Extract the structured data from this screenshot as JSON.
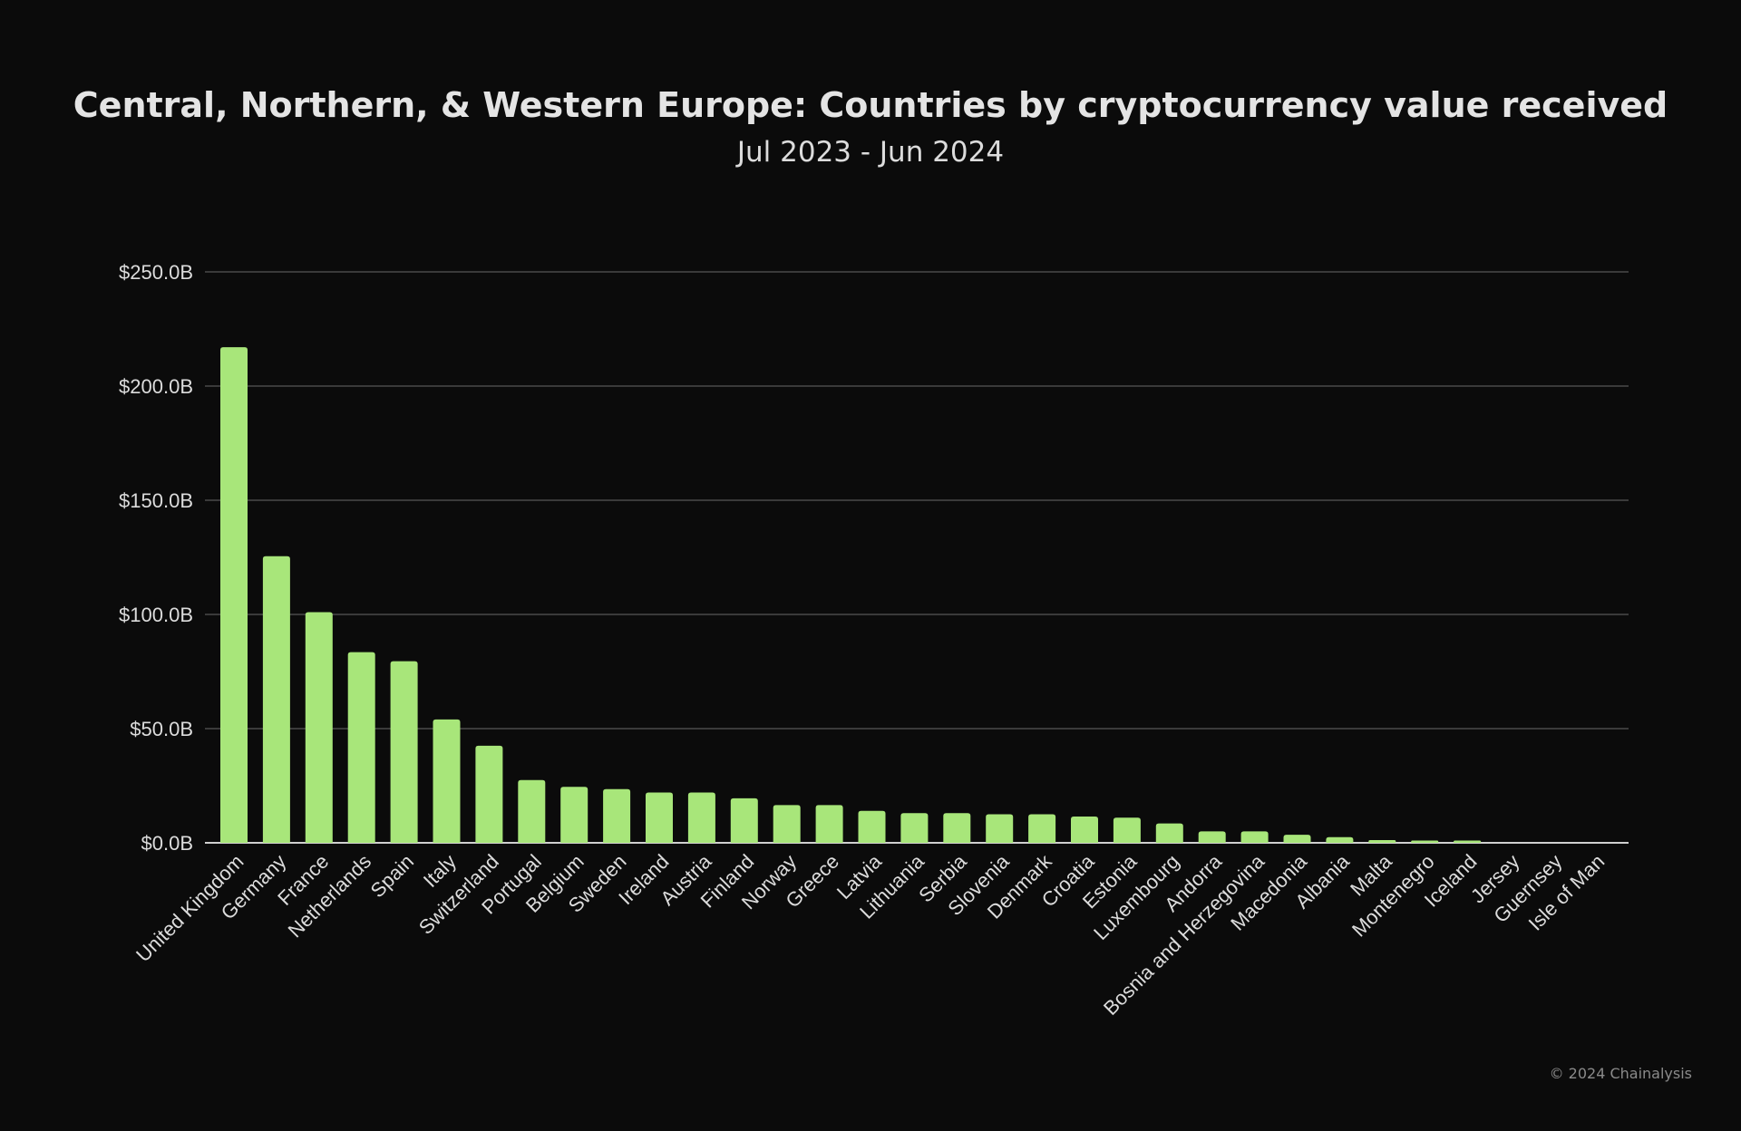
{
  "chart_data": {
    "type": "bar",
    "title": "Central, Northern, & Western Europe: Countries by cryptocurrency value received",
    "subtitle": "Jul 2023 - Jun 2024",
    "xlabel": "",
    "ylabel": "",
    "ylim": [
      0,
      250
    ],
    "yticks": [
      0,
      50,
      100,
      150,
      200,
      250
    ],
    "ytick_labels": [
      "$0.0B",
      "$50.0B",
      "$100.0B",
      "$150.0B",
      "$200.0B",
      "$250.0B"
    ],
    "grid": true,
    "categories": [
      "United Kingdom",
      "Germany",
      "France",
      "Netherlands",
      "Spain",
      "Italy",
      "Switzerland",
      "Portugal",
      "Belgium",
      "Sweden",
      "Ireland",
      "Austria",
      "Finland",
      "Norway",
      "Greece",
      "Latvia",
      "Lithuania",
      "Serbia",
      "Slovenia",
      "Denmark",
      "Croatia",
      "Estonia",
      "Luxembourg",
      "Andorra",
      "Bosnia and Herzegovina",
      "Macedonia",
      "Albania",
      "Malta",
      "Montenegro",
      "Iceland",
      "Jersey",
      "Guernsey",
      "Isle of Man"
    ],
    "values": [
      217,
      125.5,
      101,
      83.5,
      79.5,
      54,
      42.5,
      27.5,
      24.5,
      23.5,
      22,
      22,
      19.5,
      16.5,
      16.5,
      14,
      13,
      13,
      12.5,
      12.5,
      11.5,
      11,
      8.5,
      5,
      5,
      3.5,
      2.5,
      1.2,
      1,
      1,
      0.1,
      0.1,
      0.1
    ],
    "colors": {
      "bar": "#a8e67a",
      "grid": "#3a3a3a",
      "axis": "#d0d0d0",
      "text": "#dcdcdc",
      "background": "#0b0b0b"
    }
  },
  "footer": {
    "copyright": "© 2024 Chainalysis"
  }
}
